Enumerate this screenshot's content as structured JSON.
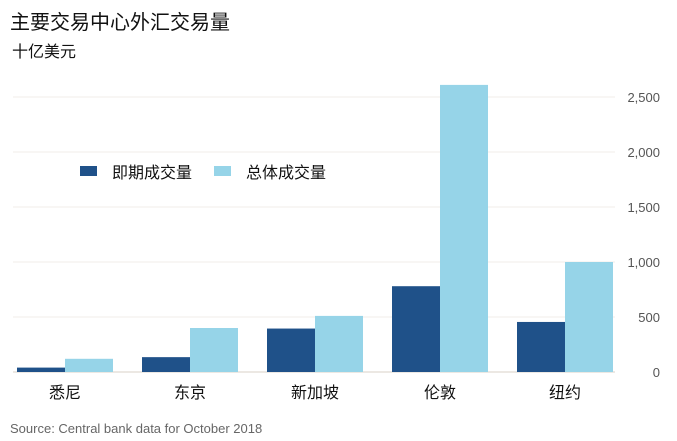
{
  "chart_data": {
    "type": "bar",
    "title": "主要交易中心外汇交易量",
    "subtitle": "十亿美元",
    "ylabel": "十亿美元",
    "xlabel": "",
    "categories": [
      "悉尼",
      "东京",
      "新加坡",
      "伦敦",
      "纽约"
    ],
    "series": [
      {
        "name": "即期成交量",
        "color": "#1f5189",
        "values": [
          40,
          135,
          395,
          780,
          455
        ]
      },
      {
        "name": "总体成交量",
        "color": "#96d4e8",
        "values": [
          120,
          400,
          510,
          2610,
          1000
        ]
      }
    ],
    "ylim": [
      0,
      2500
    ],
    "yticks": [
      0,
      500,
      1000,
      1500,
      2000,
      2500
    ],
    "ytick_labels": [
      "0",
      "500",
      "1,000",
      "1,500",
      "2,000",
      "2,500"
    ],
    "grid": true,
    "legend_position": "top-left",
    "source": "Source: Central bank data for October 2018"
  }
}
